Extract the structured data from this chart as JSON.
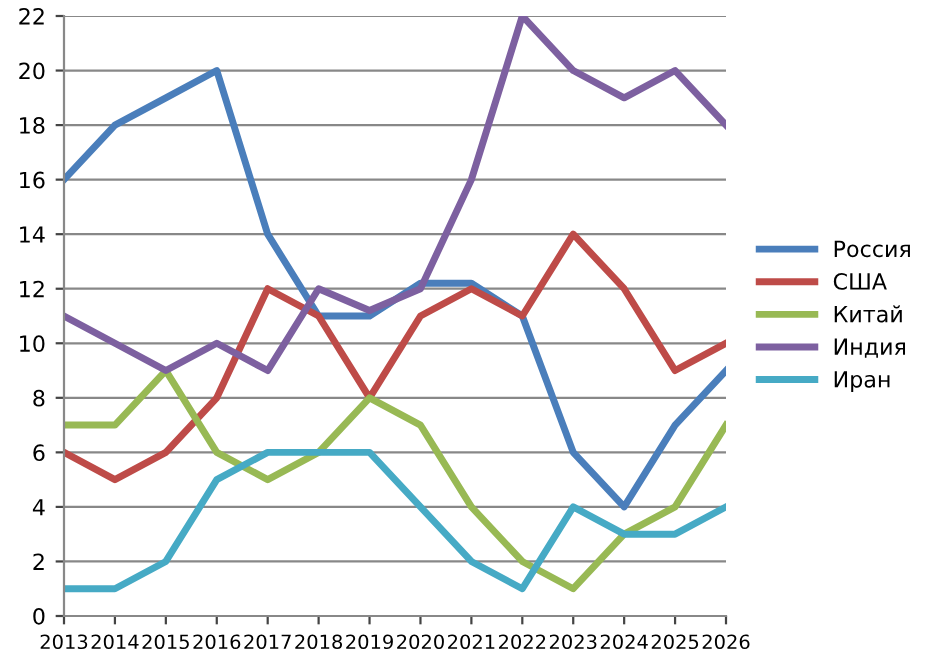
{
  "chart_data": {
    "type": "line",
    "categories": [
      "2013",
      "2014",
      "2015",
      "2016",
      "2017",
      "2018",
      "2019",
      "2020",
      "2021",
      "2022",
      "2023",
      "2024",
      "2025",
      "2026"
    ],
    "series": [
      {
        "name": "Россия",
        "color": "#4a7ebb",
        "values": [
          16,
          18,
          19,
          20,
          14,
          11,
          11,
          12.2,
          12.2,
          11,
          6,
          4,
          7,
          9
        ]
      },
      {
        "name": "США",
        "color": "#be4b48",
        "values": [
          6,
          5,
          6,
          8,
          12,
          11,
          8,
          11,
          12,
          11,
          14,
          12,
          9,
          10
        ]
      },
      {
        "name": "Китай",
        "color": "#98b954",
        "values": [
          7,
          7,
          9,
          6,
          5,
          6,
          8,
          7,
          4,
          2,
          1,
          3,
          4,
          7
        ]
      },
      {
        "name": "Индия",
        "color": "#7d60a0",
        "values": [
          11,
          10,
          9,
          10,
          9,
          12,
          11.2,
          12,
          16,
          22,
          20,
          19,
          20,
          18
        ]
      },
      {
        "name": "Иран",
        "color": "#46aac5",
        "values": [
          1,
          1,
          2,
          5,
          6,
          6,
          6,
          4,
          2,
          1,
          4,
          3,
          3,
          4
        ]
      }
    ],
    "ylim": [
      0,
      22
    ],
    "yticks": [
      0,
      2,
      4,
      6,
      8,
      10,
      12,
      14,
      16,
      18,
      20,
      22
    ],
    "grid": "y",
    "legend": "right",
    "marker": "none",
    "line_style": "solid"
  }
}
